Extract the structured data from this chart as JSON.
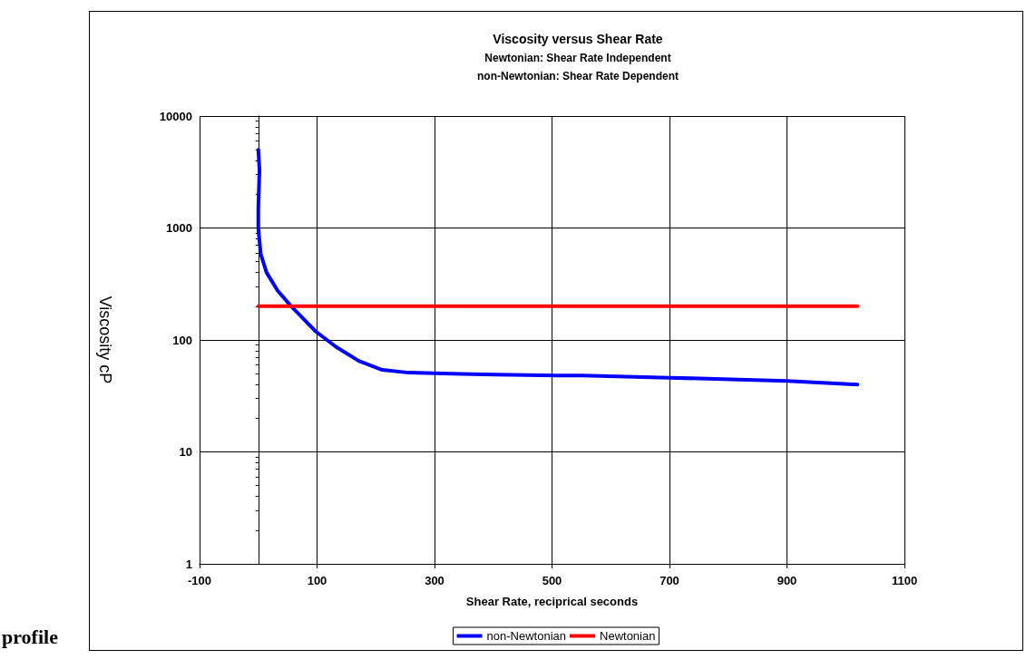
{
  "chart_data": {
    "type": "line",
    "title": "Viscosity versus Shear Rate",
    "subtitle": "Newtonian: Shear Rate Independent\nnon-Newtonian: Shear Rate Dependent",
    "xlabel": "Shear Rate, reciprical seconds",
    "ylabel": "Viscosity cP",
    "annotations": [
      "profile"
    ],
    "series": [
      {
        "name": "non-Newtonian",
        "color": "#0000ff",
        "x": [
          0,
          2,
          0,
          0,
          4,
          14,
          33,
          56,
          97,
          132,
          171,
          211,
          256,
          330,
          404,
          507,
          552,
          700,
          900,
          1020
        ],
        "values": [
          5000,
          3300,
          1500,
          1000,
          590,
          400,
          275,
          200,
          120,
          87,
          65,
          54,
          51,
          50,
          49,
          48,
          48,
          46,
          43,
          40
        ]
      },
      {
        "name": "Newtonian",
        "color": "#ff0000",
        "x": [
          0,
          1020
        ],
        "values": [
          200,
          200
        ]
      }
    ],
    "xlim": [
      -100,
      1100
    ],
    "xticks": [
      -100,
      100,
      300,
      500,
      700,
      900,
      1100
    ],
    "ylim": [
      1,
      10000
    ],
    "yticks": [
      1,
      10,
      100,
      1000,
      10000
    ],
    "log": "y",
    "grid": true,
    "legend": "bottom",
    "marker": "none",
    "line_style": "solid"
  }
}
